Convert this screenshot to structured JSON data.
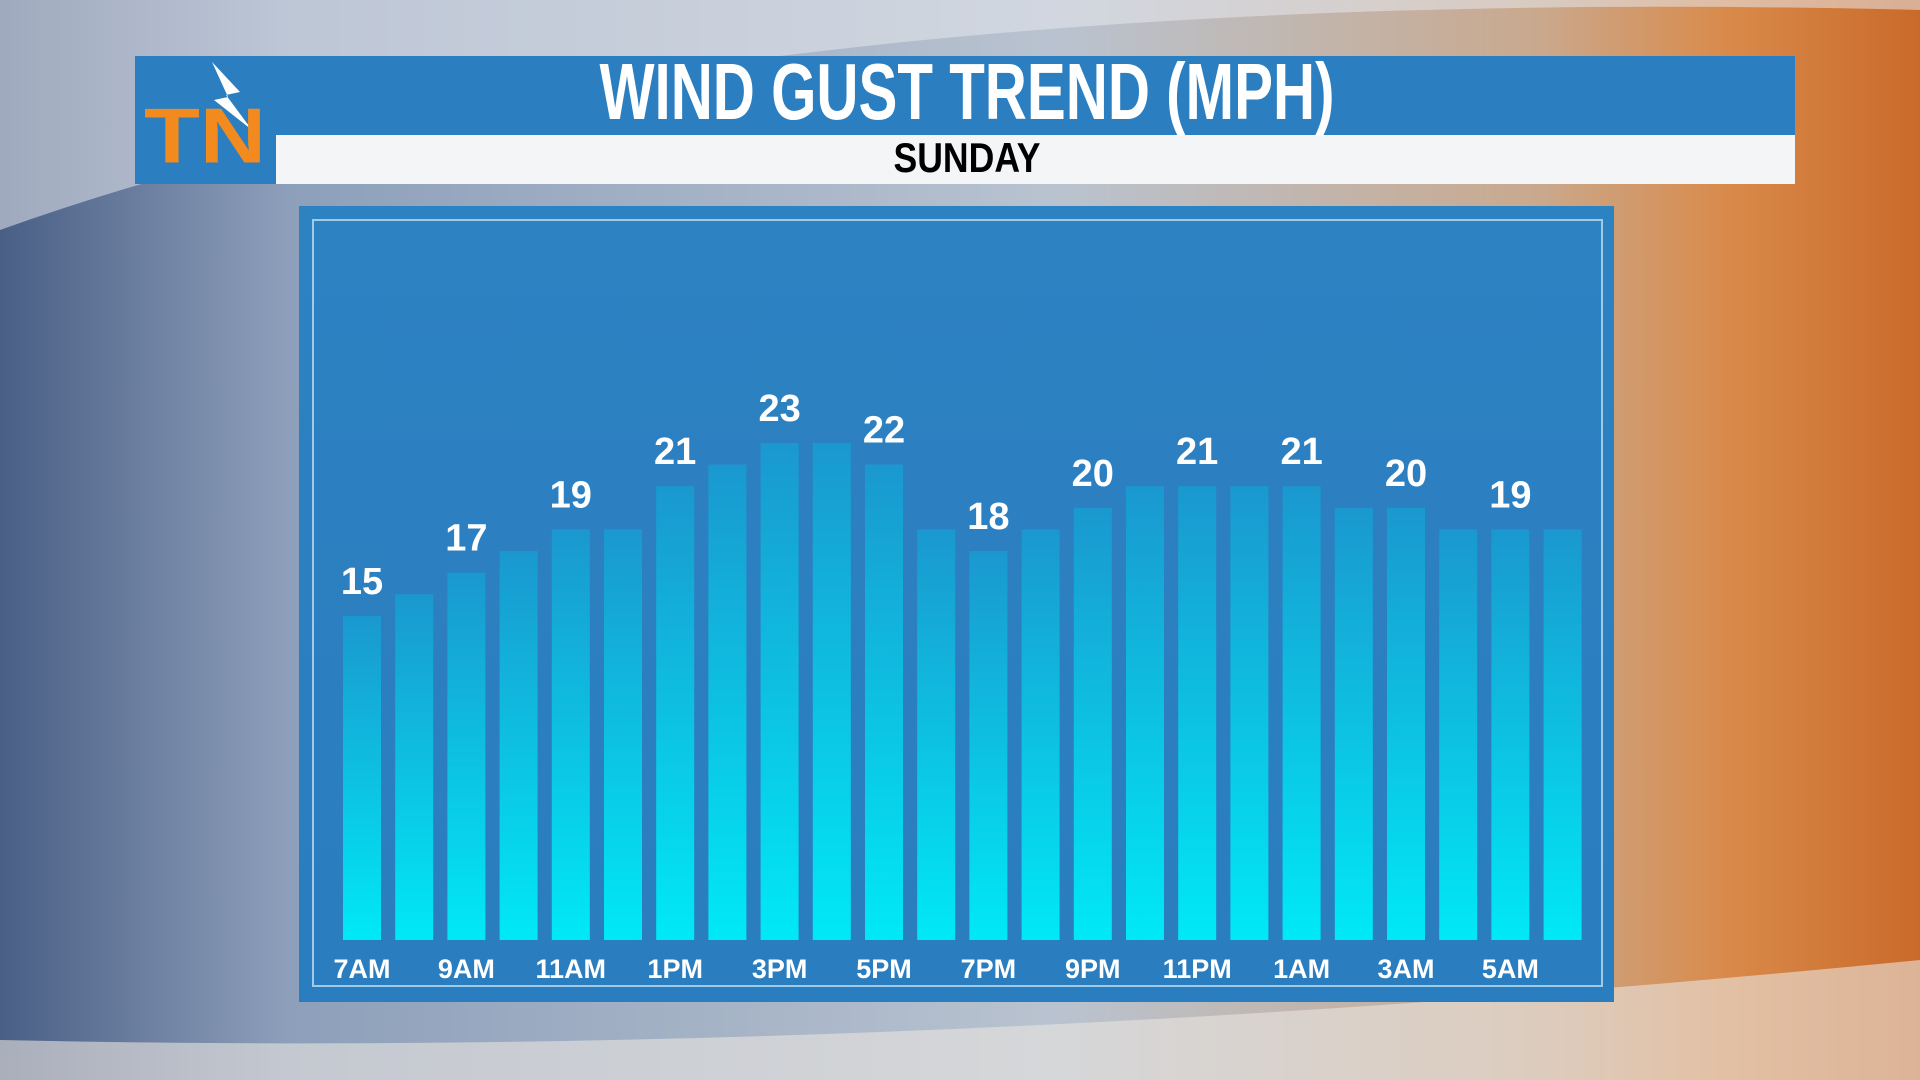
{
  "logo": "TN",
  "chart_data": {
    "type": "bar",
    "title": "WIND GUST TREND (MPH)",
    "subtitle": "SUNDAY",
    "categories": [
      "7AM",
      null,
      "9AM",
      null,
      "11AM",
      null,
      "1PM",
      null,
      "3PM",
      null,
      "5PM",
      null,
      "7PM",
      null,
      "9PM",
      null,
      "11PM",
      null,
      "1AM",
      null,
      "3AM",
      null,
      "5AM",
      null
    ],
    "values": [
      15,
      16,
      17,
      18,
      19,
      19,
      21,
      22,
      23,
      23,
      22,
      19,
      18,
      19,
      20,
      21,
      21,
      21,
      21,
      20,
      20,
      19,
      19,
      19
    ],
    "color": "#00e5f4"
  }
}
